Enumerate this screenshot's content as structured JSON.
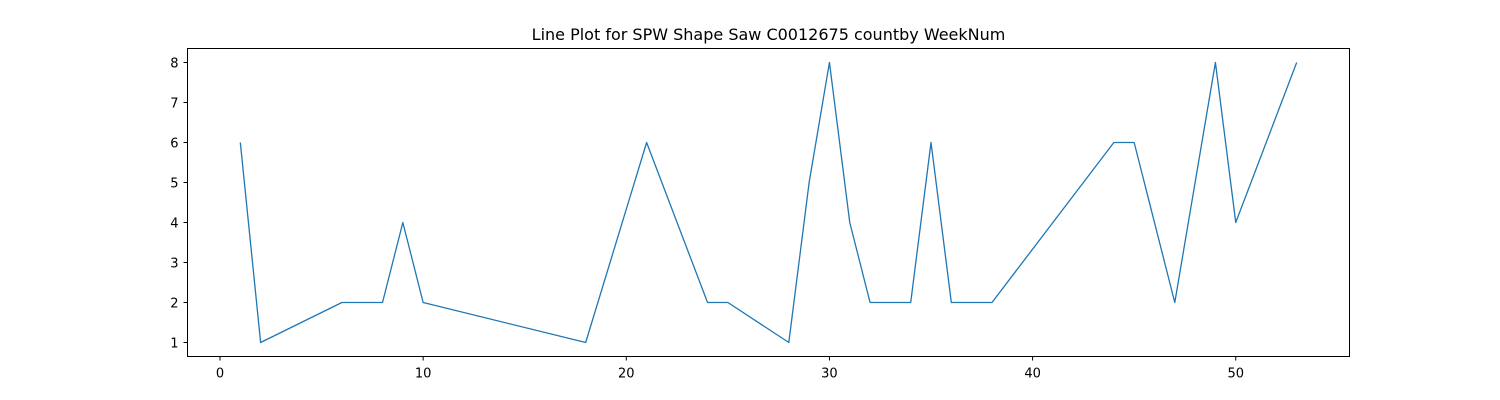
{
  "chart_data": {
    "type": "line",
    "title": "Line Plot for SPW Shape Saw C0012675 countby WeekNum",
    "xlabel": "",
    "ylabel": "",
    "xlim": [
      -1.6,
      55.6
    ],
    "ylim": [
      0.65,
      8.35
    ],
    "x_ticks": [
      0,
      10,
      20,
      30,
      40,
      50
    ],
    "y_ticks": [
      1,
      2,
      3,
      4,
      5,
      6,
      7,
      8
    ],
    "grid": false,
    "legend": "none",
    "series": [
      {
        "color": "#1f77b4",
        "x": [
          1,
          2,
          6,
          7,
          8,
          9,
          10,
          18,
          21,
          24,
          25,
          28,
          29,
          30,
          31,
          32,
          33,
          34,
          35,
          36,
          37,
          38,
          44,
          45,
          47,
          49,
          50,
          53
        ],
        "y": [
          6,
          1,
          2,
          2,
          2,
          4,
          2,
          1,
          6,
          2,
          2,
          1,
          5,
          8,
          4,
          2,
          2,
          2,
          6,
          2,
          2,
          2,
          6,
          6,
          2,
          8,
          4,
          8
        ]
      }
    ]
  }
}
